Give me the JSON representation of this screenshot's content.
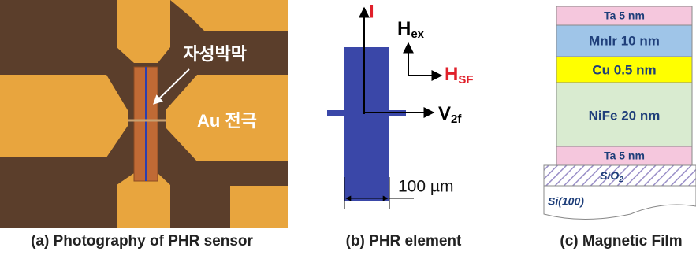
{
  "panel_a": {
    "label_film": "자성박막",
    "label_electrode": "Au 전극",
    "caption": "(a) Photography of PHR sensor"
  },
  "panel_b": {
    "current": "I",
    "field_ex": {
      "main": "H",
      "sub": "ex"
    },
    "field_sf": {
      "main": "H",
      "sub": "SF"
    },
    "voltage": {
      "main": "V",
      "sub": "2f"
    },
    "scale": "100 µm",
    "caption": "(b) PHR element"
  },
  "panel_c": {
    "layers": [
      "Ta 5 nm",
      "MnIr 10 nm",
      "Cu 0.5 nm",
      "NiFe 20 nm",
      "Ta 5 nm"
    ],
    "oxide": {
      "main": "SiO",
      "sub": "2"
    },
    "substrate": "Si(100)",
    "caption": "(c) Magnetic Film"
  }
}
